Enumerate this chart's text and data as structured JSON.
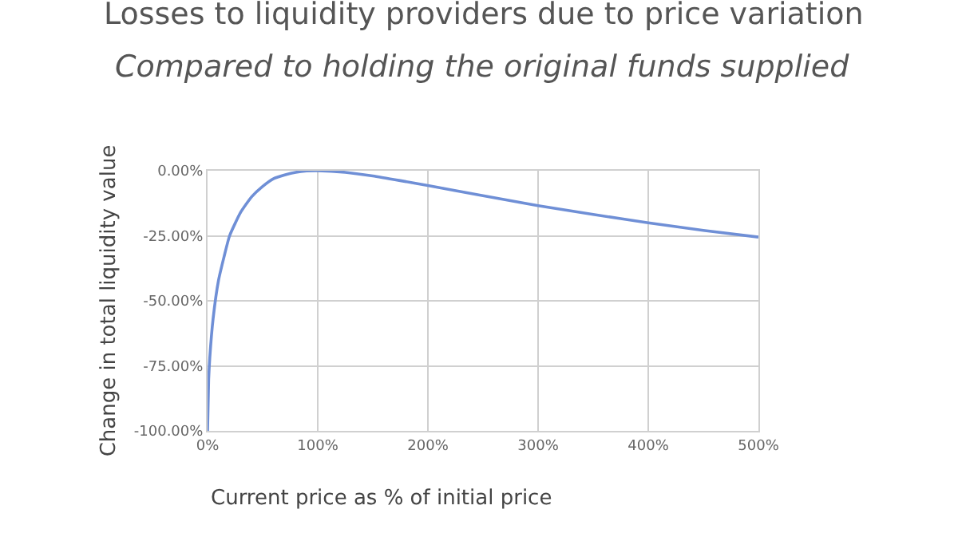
{
  "chart_data": {
    "type": "line",
    "title": "Losses to liquidity providers due to price variation",
    "subtitle": "Compared to holding the original funds supplied",
    "xlabel": "Current price as % of initial price",
    "ylabel": "Change in total liquidity value",
    "x": [
      0,
      1,
      2,
      5,
      10,
      15,
      20,
      30,
      40,
      50,
      60,
      70,
      80,
      90,
      100,
      125,
      150,
      175,
      200,
      250,
      300,
      350,
      400,
      450,
      500
    ],
    "series": [
      {
        "color": "#6f8fd6",
        "values": [
          -100,
          -80,
          -72,
          -57,
          -42,
          -33,
          -25,
          -16,
          -10,
          -6,
          -3,
          -1.6,
          -0.6,
          -0.1,
          0,
          -0.6,
          -2,
          -3.8,
          -5.7,
          -9.6,
          -13.4,
          -16.8,
          -20,
          -22.9,
          -25.5
        ]
      }
    ],
    "xlim": [
      0,
      500
    ],
    "xticks": [
      {
        "value": 0,
        "label": "0%"
      },
      {
        "value": 100,
        "label": "100%"
      },
      {
        "value": 200,
        "label": "200%"
      },
      {
        "value": 300,
        "label": "300%"
      },
      {
        "value": 400,
        "label": "400%"
      },
      {
        "value": 500,
        "label": "500%"
      }
    ],
    "ylim": [
      -100,
      0
    ],
    "yticks": [
      {
        "value": -100,
        "label": "-100.00%"
      },
      {
        "value": -75,
        "label": "-75.00%"
      },
      {
        "value": -50,
        "label": "-50.00%"
      },
      {
        "value": -25,
        "label": "-25.00%"
      },
      {
        "value": 0,
        "label": "0.00%"
      }
    ],
    "grid": true,
    "line_style": "solid",
    "marker": "none"
  }
}
